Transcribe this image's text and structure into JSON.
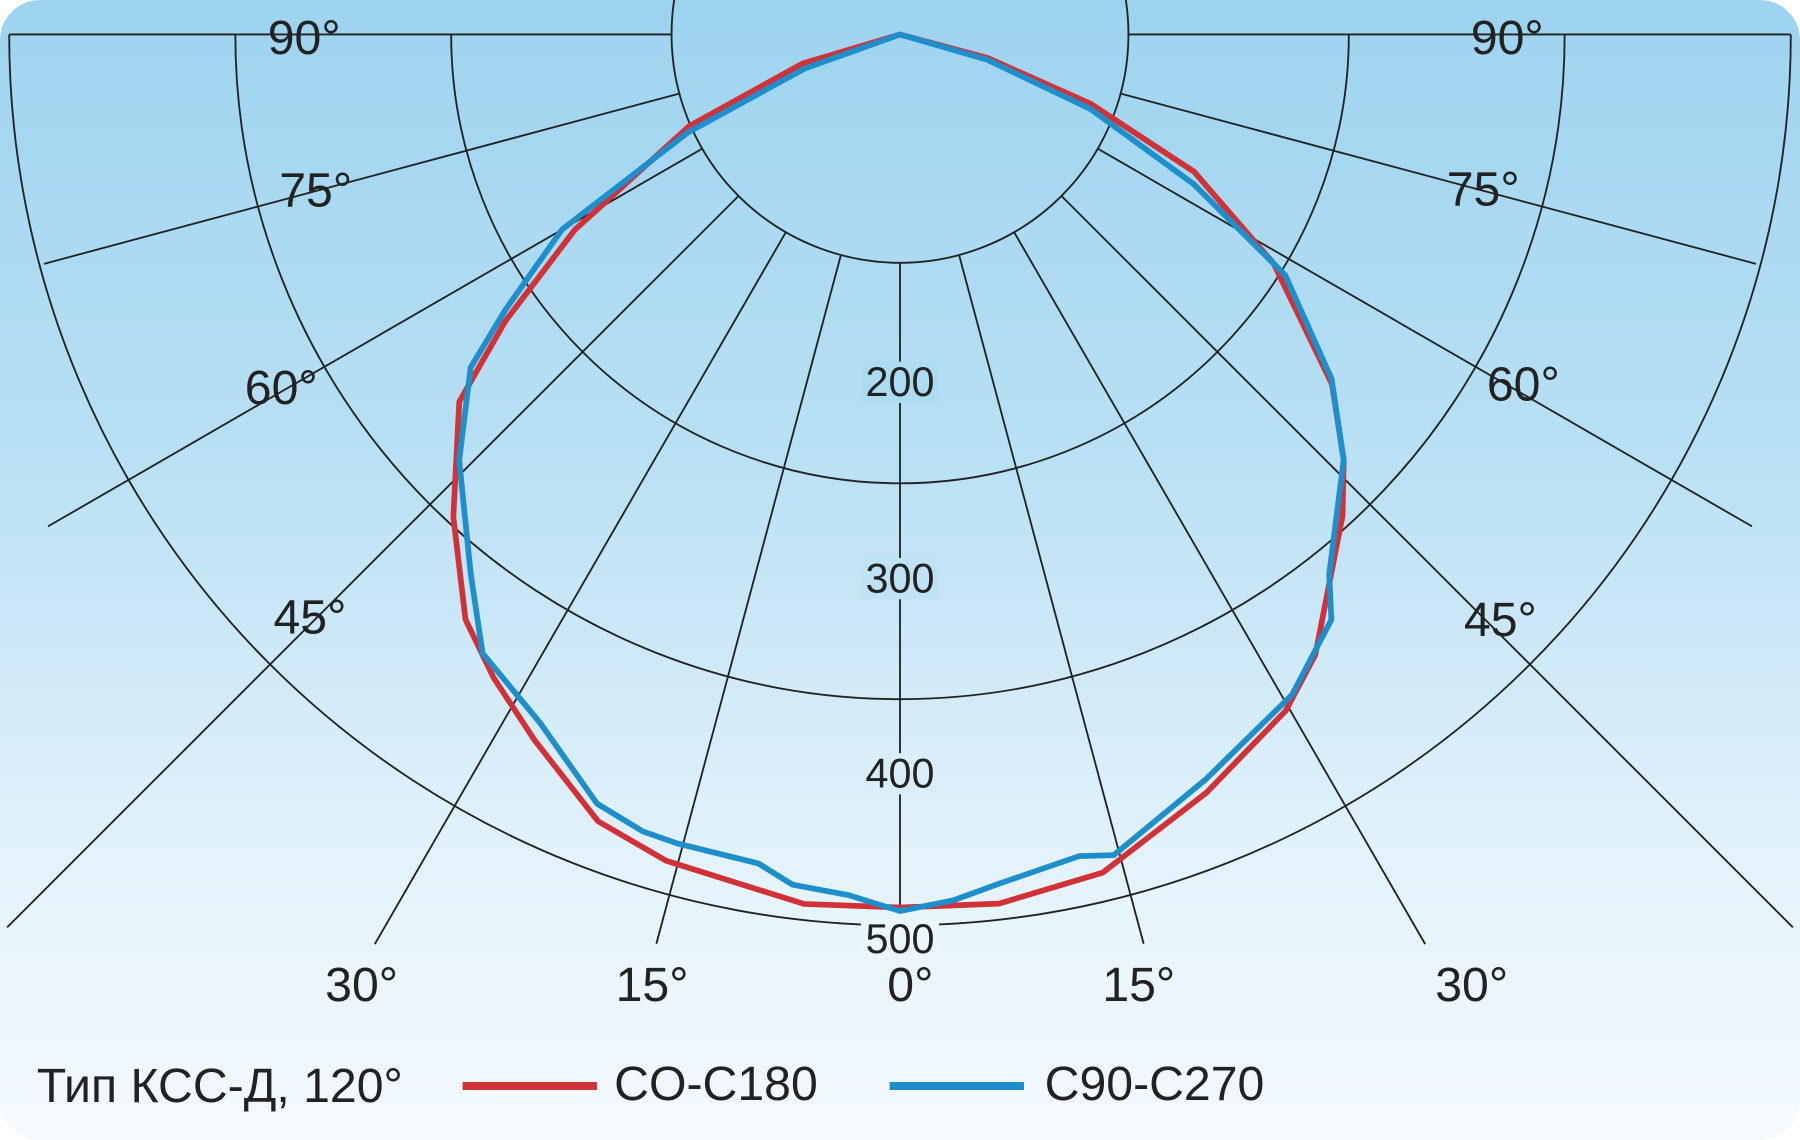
{
  "chart_data": {
    "type": "polar-line",
    "angle_unit": "degrees from nadir (negative = left half)",
    "angle_tick_labels": [
      "90°",
      "75°",
      "60°",
      "45°",
      "30°",
      "15°",
      "0°",
      "15°",
      "30°",
      "45°",
      "60°",
      "75°",
      "90°"
    ],
    "radial_tick_labels": [
      "200",
      "300",
      "400",
      "500"
    ],
    "rlim": [
      0,
      500
    ],
    "legend_placement": "bottom-left",
    "legend_title": "Тип КСС-Д, 120°",
    "series": [
      {
        "name": "CO-C180",
        "color": "#d13238",
        "points": [
          [
            -90,
            0
          ],
          [
            -73.4,
            57
          ],
          [
            -66.5,
            129
          ],
          [
            -59,
            213
          ],
          [
            -54,
            274
          ],
          [
            -50.2,
            322
          ],
          [
            -42.8,
            369
          ],
          [
            -36.6,
            409
          ],
          [
            -32.3,
            427
          ],
          [
            -27.4,
            446
          ],
          [
            -21,
            473
          ],
          [
            -15.8,
            482
          ],
          [
            -6.3,
            491
          ],
          [
            0,
            490
          ],
          [
            6.5,
            491
          ],
          [
            13.6,
            484
          ],
          [
            22,
            459
          ],
          [
            29.7,
            437
          ],
          [
            33.8,
            419
          ],
          [
            42.6,
            367
          ],
          [
            46.2,
            345
          ],
          [
            51,
            312
          ],
          [
            58.5,
            246
          ],
          [
            65,
            182
          ],
          [
            70,
            114
          ],
          [
            75,
            51
          ],
          [
            90,
            0
          ]
        ]
      },
      {
        "name": "C90-C270",
        "color": "#1f8fcc",
        "points": [
          [
            -90,
            0
          ],
          [
            -70.3,
            57
          ],
          [
            -65.2,
            131
          ],
          [
            -60,
            219
          ],
          [
            -55.1,
            270
          ],
          [
            -52.2,
            305
          ],
          [
            -46,
            344
          ],
          [
            -38.5,
            387
          ],
          [
            -34,
            419
          ],
          [
            -27.6,
            436
          ],
          [
            -21.5,
            464
          ],
          [
            -17.9,
            470
          ],
          [
            -15.4,
            471
          ],
          [
            -9.7,
            472
          ],
          [
            -7.2,
            481
          ],
          [
            -3.4,
            484
          ],
          [
            0,
            492
          ],
          [
            3.5,
            487
          ],
          [
            6.6,
            480
          ],
          [
            12.3,
            472
          ],
          [
            14.6,
            476
          ],
          [
            17.4,
            466
          ],
          [
            22.3,
            452
          ],
          [
            30.7,
            431
          ],
          [
            36.4,
            408
          ],
          [
            38.5,
            387
          ],
          [
            46.2,
            345
          ],
          [
            51.4,
            310
          ],
          [
            58,
            255
          ],
          [
            63,
            185
          ],
          [
            68.6,
            115
          ],
          [
            73.9,
            51
          ],
          [
            90,
            0
          ]
        ]
      }
    ]
  }
}
